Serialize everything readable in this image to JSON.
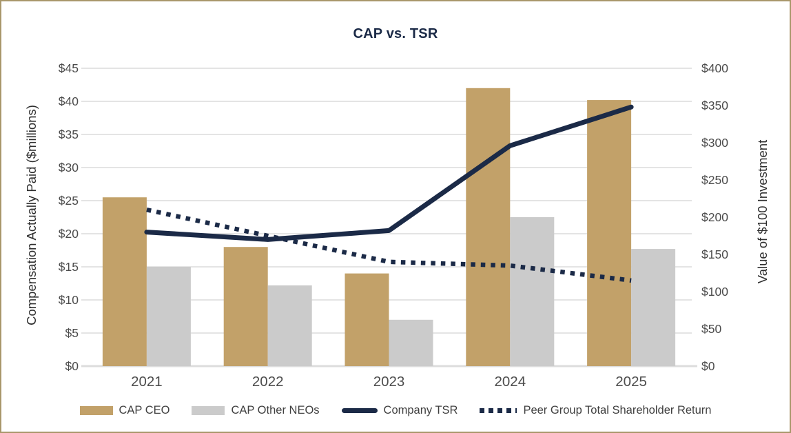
{
  "colors": {
    "frame_border": "#A9976B",
    "ceo_bar": "#C2A169",
    "neo_bar": "#CBCBCB",
    "navy": "#1B2A47",
    "gridline": "#DCDCDC",
    "tick_text": "#4D4D4D",
    "axis_title_text": "#2E2E2E",
    "legend_text": "#3F3F3F"
  },
  "chart_data": {
    "type": "combo",
    "title": "CAP vs. TSR",
    "categories": [
      "2021",
      "2022",
      "2023",
      "2024",
      "2025"
    ],
    "bar_series": [
      {
        "name": "CAP CEO",
        "axis": "left",
        "color": "#C2A169",
        "values": [
          25.5,
          18,
          14,
          42,
          40.2
        ]
      },
      {
        "name": "CAP Other NEOs",
        "axis": "left",
        "color": "#CBCBCB",
        "values": [
          15,
          12.2,
          7,
          22.5,
          17.7
        ]
      }
    ],
    "line_series": [
      {
        "name": "Company TSR",
        "axis": "right",
        "color": "#1B2A47",
        "style": "solid",
        "values": [
          180,
          170,
          182,
          296,
          348
        ]
      },
      {
        "name": "Peer Group Total Shareholder Return",
        "axis": "right",
        "color": "#1B2A47",
        "style": "dotted",
        "values": [
          210,
          175,
          140,
          135,
          115
        ]
      }
    ],
    "left_axis": {
      "label": "Compensation Actually Paid ($millions)",
      "min": 0,
      "max": 45,
      "step": 5,
      "ticks": [
        "$0",
        "$5",
        "$10",
        "$15",
        "$20",
        "$25",
        "$30",
        "$35",
        "$40",
        "$45"
      ]
    },
    "right_axis": {
      "label": "Value of $100 Investment",
      "min": 0,
      "max": 400,
      "step": 50,
      "ticks": [
        "$0",
        "$50",
        "$100",
        "$150",
        "$200",
        "$250",
        "$300",
        "$350",
        "$400"
      ]
    },
    "grid": true,
    "legend_position": "bottom"
  }
}
